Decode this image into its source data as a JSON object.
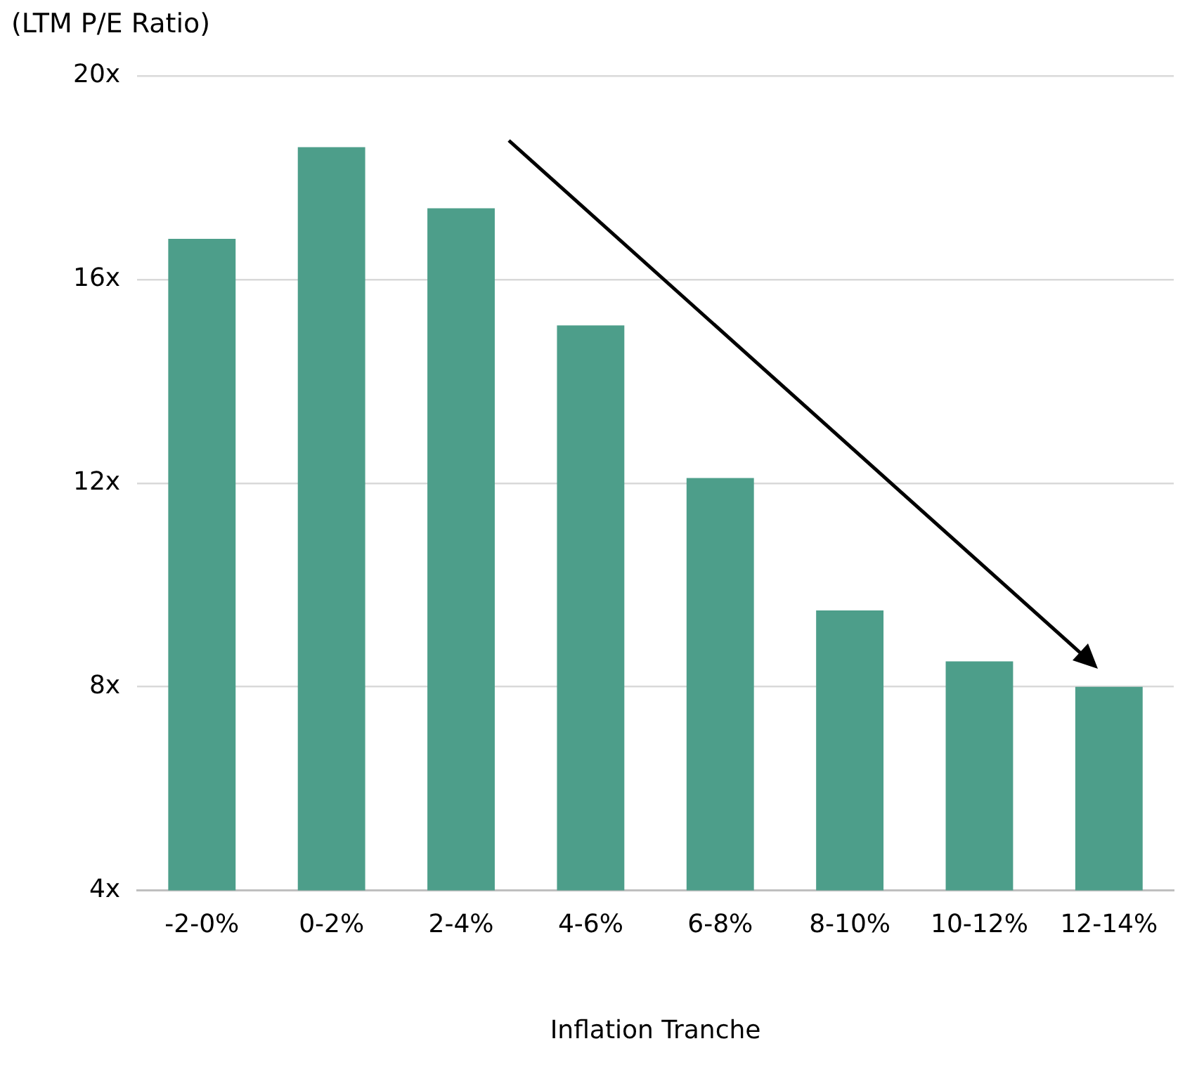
{
  "chart_data": {
    "type": "bar",
    "ylabel": "(LTM P/E Ratio)",
    "xlabel": "Inflation Tranche",
    "categories": [
      "-2-0%",
      "0-2%",
      "2-4%",
      "4-6%",
      "6-8%",
      "8-10%",
      "10-12%",
      "12-14%"
    ],
    "values": [
      16.8,
      18.6,
      17.4,
      15.1,
      12.1,
      9.5,
      8.5,
      8.0
    ],
    "color": "#4d9e8a",
    "ylim": [
      4,
      20
    ],
    "yticks": [
      {
        "value": 4,
        "label": "4x"
      },
      {
        "value": 8,
        "label": "8x"
      },
      {
        "value": 12,
        "label": "12x"
      },
      {
        "value": 16,
        "label": "16x"
      },
      {
        "value": 20,
        "label": "20x"
      }
    ],
    "grid": "y",
    "legend": false
  }
}
